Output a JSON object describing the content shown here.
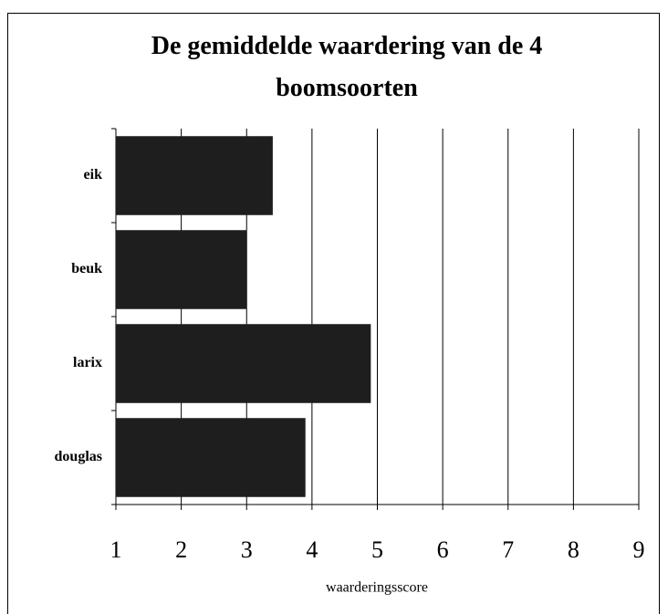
{
  "chart_data": {
    "type": "bar",
    "orientation": "horizontal",
    "title": "De gemiddelde waardering van de 4 boomsoorten",
    "x_label": "waarderingsscore",
    "categories": [
      "eik",
      "beuk",
      "larix",
      "douglas"
    ],
    "values": [
      3.4,
      3.0,
      4.9,
      3.9
    ],
    "color": "#1e1e1e",
    "xlim": [
      1,
      9
    ],
    "xticks": [
      1,
      2,
      3,
      4,
      5,
      6,
      7,
      8,
      9
    ],
    "grid": true
  }
}
